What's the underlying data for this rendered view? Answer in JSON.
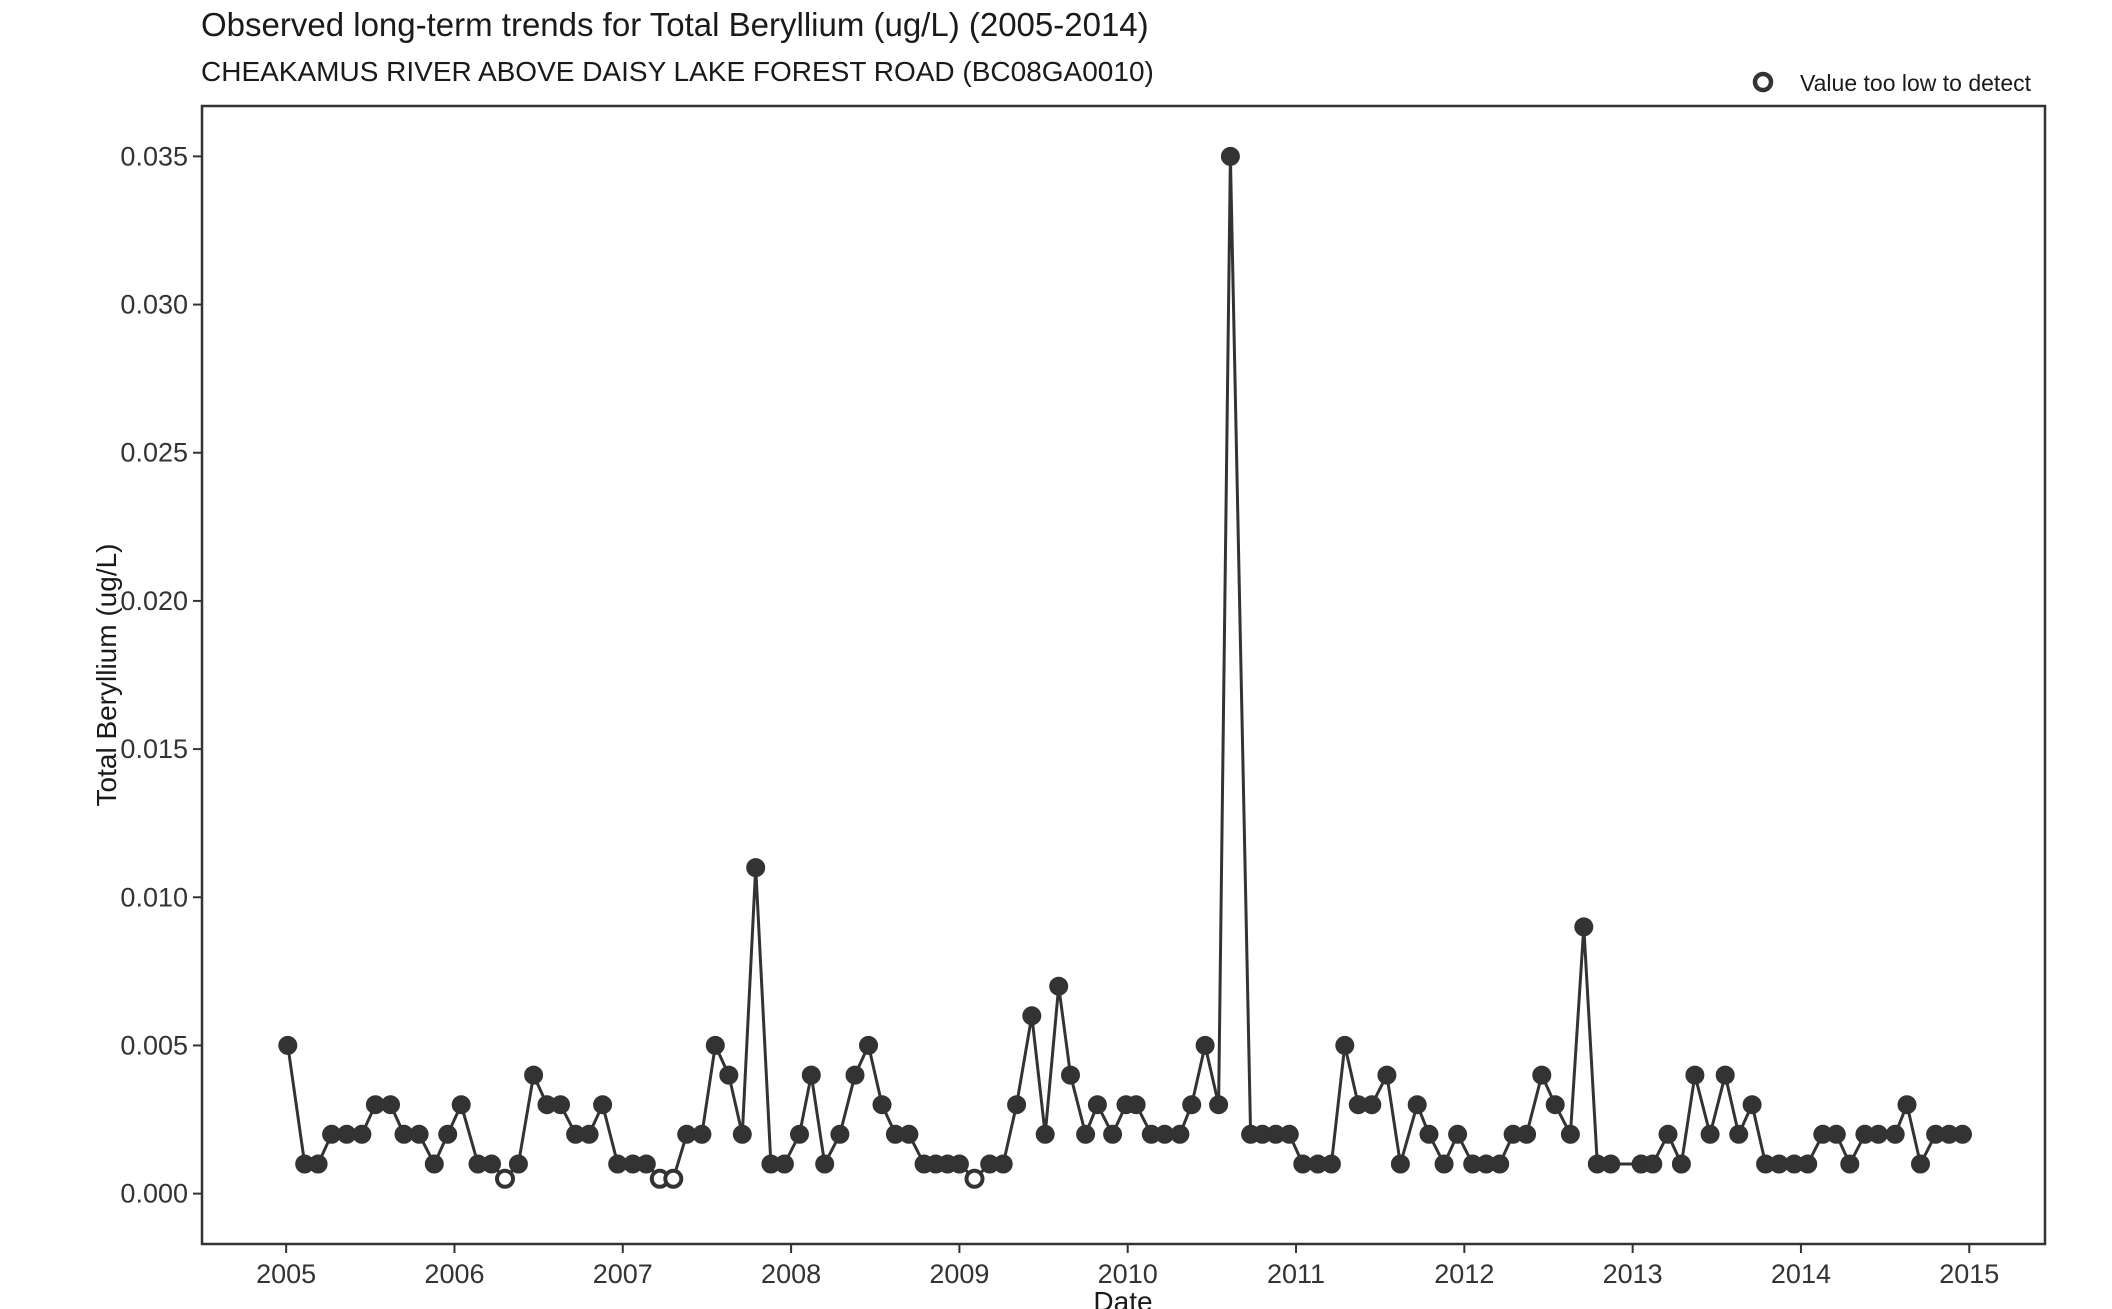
{
  "chart_data": {
    "type": "line",
    "title": "Observed long-term trends for Total Beryllium (ug/L) (2005-2014)",
    "subtitle": "CHEAKAMUS RIVER ABOVE DAISY LAKE FOREST ROAD (BC08GA0010)",
    "xlabel": "Date",
    "ylabel": "Total Beryllium (ug/L)",
    "xlim": [
      2004.5,
      2015.45
    ],
    "ylim": [
      -0.0017,
      0.0367
    ],
    "x_ticks": [
      2005,
      2006,
      2007,
      2008,
      2009,
      2010,
      2011,
      2012,
      2013,
      2014,
      2015
    ],
    "x_tick_labels": [
      "2005",
      "2006",
      "2007",
      "2008",
      "2009",
      "2010",
      "2011",
      "2012",
      "2013",
      "2014",
      "2015"
    ],
    "y_ticks": [
      0,
      0.005,
      0.01,
      0.015,
      0.02,
      0.025,
      0.03,
      0.035
    ],
    "y_tick_labels": [
      "0.000",
      "0.005",
      "0.010",
      "0.015",
      "0.020",
      "0.025",
      "0.030",
      "0.035"
    ],
    "legend": {
      "position": "top-right",
      "entries": [
        {
          "label": "Value too low to detect",
          "marker": "open-circle"
        }
      ]
    },
    "colors": {
      "line": "#333333",
      "marker": "#333333",
      "frame": "#333333"
    },
    "series": [
      {
        "x": [
          2005.01,
          2005.11,
          2005.19,
          2005.27,
          2005.36,
          2005.45,
          2005.53,
          2005.62,
          2005.7,
          2005.79,
          2005.88,
          2005.96,
          2006.04,
          2006.14,
          2006.22,
          2006.3,
          2006.38,
          2006.47,
          2006.55,
          2006.63,
          2006.72,
          2006.8,
          2006.88,
          2006.97,
          2007.06,
          2007.14,
          2007.22,
          2007.3,
          2007.38,
          2007.47,
          2007.55,
          2007.63,
          2007.71,
          2007.79,
          2007.88,
          2007.96,
          2008.05,
          2008.12,
          2008.2,
          2008.29,
          2008.38,
          2008.46,
          2008.54,
          2008.62,
          2008.7,
          2008.79,
          2008.86,
          2008.93,
          2009.0,
          2009.09,
          2009.18,
          2009.26,
          2009.34,
          2009.43,
          2009.51,
          2009.59,
          2009.66,
          2009.75,
          2009.82,
          2009.91,
          2009.99,
          2010.05,
          2010.14,
          2010.22,
          2010.31,
          2010.38,
          2010.46,
          2010.54,
          2010.61,
          2010.73,
          2010.8,
          2010.88,
          2010.96,
          2011.04,
          2011.13,
          2011.21,
          2011.29,
          2011.37,
          2011.45,
          2011.54,
          2011.62,
          2011.72,
          2011.79,
          2011.88,
          2011.96,
          2012.05,
          2012.13,
          2012.21,
          2012.29,
          2012.37,
          2012.46,
          2012.54,
          2012.63,
          2012.71,
          2012.79,
          2012.87,
          2013.05,
          2013.12,
          2013.21,
          2013.29,
          2013.37,
          2013.46,
          2013.55,
          2013.63,
          2013.71,
          2013.79,
          2013.87,
          2013.96,
          2014.04,
          2014.13,
          2014.21,
          2014.29,
          2014.38,
          2014.46,
          2014.56,
          2014.63,
          2014.71,
          2014.8,
          2014.88,
          2014.96
        ],
        "values": [
          0.005,
          0.001,
          0.001,
          0.002,
          0.002,
          0.002,
          0.003,
          0.003,
          0.002,
          0.002,
          0.001,
          0.002,
          0.003,
          0.001,
          0.001,
          0.0005,
          0.001,
          0.004,
          0.003,
          0.003,
          0.002,
          0.002,
          0.003,
          0.001,
          0.001,
          0.001,
          0.0005,
          0.0005,
          0.002,
          0.002,
          0.005,
          0.004,
          0.002,
          0.011,
          0.001,
          0.001,
          0.002,
          0.004,
          0.001,
          0.002,
          0.004,
          0.005,
          0.003,
          0.002,
          0.002,
          0.001,
          0.001,
          0.001,
          0.001,
          0.0005,
          0.001,
          0.001,
          0.003,
          0.006,
          0.002,
          0.007,
          0.004,
          0.002,
          0.003,
          0.002,
          0.003,
          0.003,
          0.002,
          0.002,
          0.002,
          0.003,
          0.005,
          0.003,
          0.035,
          0.002,
          0.002,
          0.002,
          0.002,
          0.001,
          0.001,
          0.001,
          0.005,
          0.003,
          0.003,
          0.004,
          0.001,
          0.003,
          0.002,
          0.001,
          0.002,
          0.001,
          0.001,
          0.001,
          0.002,
          0.002,
          0.004,
          0.003,
          0.002,
          0.009,
          0.001,
          0.001,
          0.001,
          0.001,
          0.002,
          0.001,
          0.004,
          0.002,
          0.004,
          0.002,
          0.003,
          0.001,
          0.001,
          0.001,
          0.001,
          0.002,
          0.002,
          0.001,
          0.002,
          0.002,
          0.002,
          0.003,
          0.001,
          0.002,
          0.002,
          0.002
        ],
        "below_detection": [
          false,
          false,
          false,
          false,
          false,
          false,
          false,
          false,
          false,
          false,
          false,
          false,
          false,
          false,
          false,
          true,
          false,
          false,
          false,
          false,
          false,
          false,
          false,
          false,
          false,
          false,
          true,
          true,
          false,
          false,
          false,
          false,
          false,
          false,
          false,
          false,
          false,
          false,
          false,
          false,
          false,
          false,
          false,
          false,
          false,
          false,
          false,
          false,
          false,
          true,
          false,
          false,
          false,
          false,
          false,
          false,
          false,
          false,
          false,
          false,
          false,
          false,
          false,
          false,
          false,
          false,
          false,
          false,
          false,
          false,
          false,
          false,
          false,
          false,
          false,
          false,
          false,
          false,
          false,
          false,
          false,
          false,
          false,
          false,
          false,
          false,
          false,
          false,
          false,
          false,
          false,
          false,
          false,
          false,
          false,
          false,
          false,
          false,
          false,
          false,
          false,
          false,
          false,
          false,
          false,
          false,
          false,
          false,
          false,
          false,
          false,
          false,
          false,
          false,
          false,
          false,
          false,
          false,
          false,
          false
        ]
      }
    ]
  }
}
